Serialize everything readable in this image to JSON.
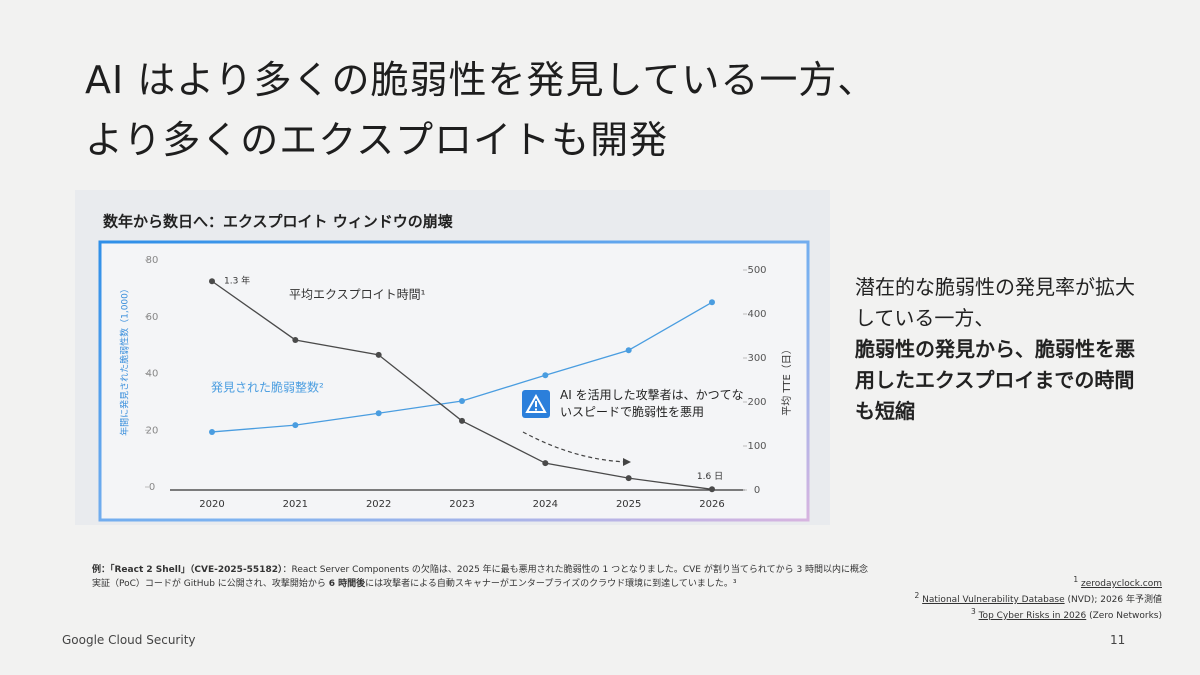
{
  "slide": {
    "title_lines": [
      "AI はより多くの脆弱性を発見している一方、",
      "より多くのエクスプロイトも開発"
    ],
    "side_text": "潜在的な脆弱性の発見率が拡大している一方、",
    "side_text_bold": "脆弱性の発見から、脆弱性を悪用したエクスプロイまでの時間も短縮",
    "note_parts": [
      {
        "text": "例：「React 2 Shell」（CVE-2025-55182）",
        "bold": true
      },
      {
        "text": "：React Server Components の欠陥は、2025 年に最も悪用された脆弱性の 1 つとなりました。CVE が割り当てられてから 3 時間以内に概念実証（PoC）コードが GitHub に公開され、攻撃開始から ",
        "bold": false
      },
      {
        "text": "6 時間後",
        "bold": true
      },
      {
        "text": "には攻撃者による自動スキャナーがエンタープライズのクラウド環境に到達していました。³",
        "bold": false
      }
    ],
    "sources": [
      {
        "num": "1",
        "link": "zerodayclock.com",
        "rest": ""
      },
      {
        "num": "2",
        "link": "National Vulnerability Database",
        "rest": "(NVD); 2026 年予測値"
      },
      {
        "num": "3",
        "link": "Top Cyber Risks in 2026",
        "rest": "(Zero Networks)"
      }
    ],
    "footer": "Google Cloud Security",
    "page_number": "11"
  },
  "chart_data": {
    "type": "line",
    "title": "数年から数日へ：エクスプロイト ウィンドウの崩壊",
    "categories": [
      "2020",
      "2021",
      "2022",
      "2023",
      "2024",
      "2025",
      "2026"
    ],
    "y_label": "年間に発見された脆弱性数（1,000）",
    "y2_label": "平均 TTE（日）",
    "ylim": [
      0,
      80
    ],
    "yticks": [
      0,
      20,
      40,
      60,
      80
    ],
    "y2lim": [
      0,
      500
    ],
    "y2ticks": [
      0,
      100,
      200,
      300,
      400,
      500
    ],
    "series": [
      {
        "name": "発見された脆弱整数²",
        "color": "#4a9de0",
        "values": [
          19.4,
          21.8,
          26,
          30.3,
          39.4,
          48.2,
          65.1
        ]
      },
      {
        "name": "平均エクスプロイト時間¹",
        "color": "#4a4a4a",
        "axis": "y2",
        "values": [
          474.5,
          341,
          307,
          157,
          61,
          27,
          1.6
        ],
        "value_labels": [
          "1.3 年",
          null,
          null,
          null,
          null,
          null,
          "1.6 日"
        ]
      }
    ],
    "annotation": "AI を活用した攻撃者は、かつてないスピードで脆弱性を悪用"
  }
}
